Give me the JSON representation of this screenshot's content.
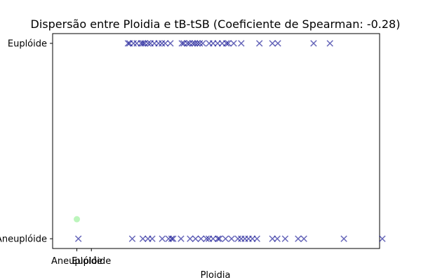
{
  "chart_data": {
    "type": "scatter",
    "title": "Dispersão entre Ploidia e tB-tSB (Coeficiente de Spearman: -0.28)",
    "xlabel": "Ploidia",
    "ylabel": "",
    "xlim": [
      -0.08,
      1.0
    ],
    "ylim": [
      -0.05,
      1.05
    ],
    "grid": false,
    "x_tick_values": [
      0.0,
      0.048
    ],
    "x_tick_labels": [
      "Aneuplóide",
      "Euplóide"
    ],
    "y_tick_values": [
      0,
      1
    ],
    "y_tick_labels": [
      "Aneuplóide",
      "Euplóide"
    ],
    "series": [
      {
        "name": "",
        "marker": "x",
        "color": "#00008b",
        "opacity": 0.6,
        "points": [
          [
            0.169,
            1
          ],
          [
            0.174,
            1
          ],
          [
            0.187,
            1
          ],
          [
            0.198,
            1
          ],
          [
            0.212,
            1
          ],
          [
            0.218,
            1
          ],
          [
            0.224,
            1
          ],
          [
            0.235,
            1
          ],
          [
            0.243,
            1
          ],
          [
            0.256,
            1
          ],
          [
            0.27,
            1
          ],
          [
            0.281,
            1
          ],
          [
            0.292,
            1
          ],
          [
            0.309,
            1
          ],
          [
            0.347,
            1
          ],
          [
            0.353,
            1
          ],
          [
            0.365,
            1
          ],
          [
            0.372,
            1
          ],
          [
            0.383,
            1
          ],
          [
            0.39,
            1
          ],
          [
            0.398,
            1
          ],
          [
            0.406,
            1
          ],
          [
            0.416,
            1
          ],
          [
            0.437,
            1
          ],
          [
            0.45,
            1
          ],
          [
            0.465,
            1
          ],
          [
            0.48,
            1
          ],
          [
            0.494,
            1
          ],
          [
            0.5,
            1
          ],
          [
            0.518,
            1
          ],
          [
            0.543,
            1
          ],
          [
            0.603,
            1
          ],
          [
            0.646,
            1
          ],
          [
            0.664,
            1
          ],
          [
            0.782,
            1
          ],
          [
            0.836,
            1
          ],
          [
            0.005,
            0
          ],
          [
            0.183,
            0
          ],
          [
            0.218,
            0
          ],
          [
            0.235,
            0
          ],
          [
            0.249,
            0
          ],
          [
            0.282,
            0
          ],
          [
            0.303,
            0
          ],
          [
            0.313,
            0
          ],
          [
            0.318,
            0
          ],
          [
            0.344,
            0
          ],
          [
            0.374,
            0
          ],
          [
            0.392,
            0
          ],
          [
            0.41,
            0
          ],
          [
            0.428,
            0
          ],
          [
            0.436,
            0
          ],
          [
            0.45,
            0
          ],
          [
            0.466,
            0
          ],
          [
            0.471,
            0
          ],
          [
            0.491,
            0
          ],
          [
            0.511,
            0
          ],
          [
            0.532,
            0
          ],
          [
            0.543,
            0
          ],
          [
            0.555,
            0
          ],
          [
            0.567,
            0
          ],
          [
            0.58,
            0
          ],
          [
            0.595,
            0
          ],
          [
            0.646,
            0
          ],
          [
            0.662,
            0
          ],
          [
            0.688,
            0
          ],
          [
            0.731,
            0
          ],
          [
            0.75,
            0
          ],
          [
            0.882,
            0
          ],
          [
            1.009,
            0
          ]
        ]
      },
      {
        "name": "",
        "marker": "o",
        "color": "#90ee90",
        "opacity": 0.6,
        "points": [
          [
            0.0,
            0.1
          ]
        ]
      }
    ]
  }
}
